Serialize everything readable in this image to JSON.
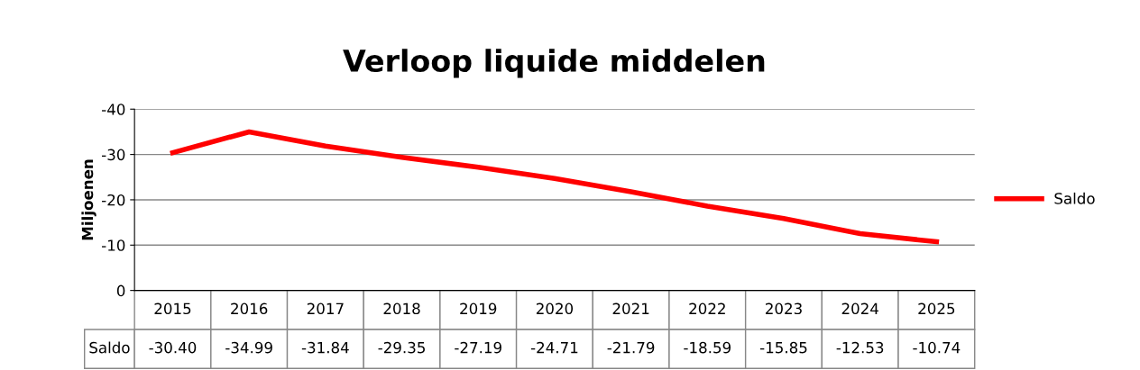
{
  "chart_data": {
    "type": "line",
    "title": "Verloop liquide middelen",
    "ylabel": "Miljoenen",
    "categories": [
      "2015",
      "2016",
      "2017",
      "2018",
      "2019",
      "2020",
      "2021",
      "2022",
      "2023",
      "2024",
      "2025"
    ],
    "series": [
      {
        "name": "Saldo",
        "color": "#ff0000",
        "values": [
          -30.4,
          -34.99,
          -31.84,
          -29.35,
          -27.19,
          -24.71,
          -21.79,
          -18.59,
          -15.85,
          -12.53,
          -10.74
        ],
        "value_labels": [
          "-30.40",
          "-34.99",
          "-31.84",
          "-29.35",
          "-27.19",
          "-24.71",
          "-21.79",
          "-18.59",
          "-15.85",
          "-12.53",
          "-10.74"
        ]
      }
    ],
    "ylim": [
      0,
      -40
    ],
    "yticks": [
      0,
      -10,
      -20,
      -30,
      -40
    ],
    "grid": "y",
    "legend": "right",
    "marker": "none",
    "line_style": "solid"
  }
}
